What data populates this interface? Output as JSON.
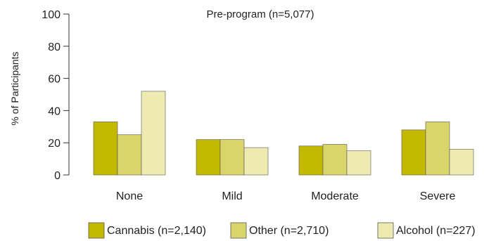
{
  "chart_data": {
    "type": "bar",
    "title": "Pre-program (n=5,077)",
    "ylabel": "% of Participants",
    "xlabel": "",
    "ylim": [
      0,
      100
    ],
    "yticks": [
      0,
      20,
      40,
      60,
      80,
      100
    ],
    "grid": false,
    "legend_position": "bottom",
    "categories": [
      "None",
      "Mild",
      "Moderate",
      "Severe"
    ],
    "series": [
      {
        "name": "Cannabis (n=2,140)",
        "color": "#c2b900",
        "values": [
          33,
          22,
          18,
          28
        ]
      },
      {
        "name": "Other (n=2,710)",
        "color": "#d9d56a",
        "values": [
          25,
          22,
          19,
          33
        ]
      },
      {
        "name": "Alcohol (n=227)",
        "color": "#eeeab0",
        "values": [
          52,
          17,
          15,
          16
        ]
      }
    ]
  }
}
